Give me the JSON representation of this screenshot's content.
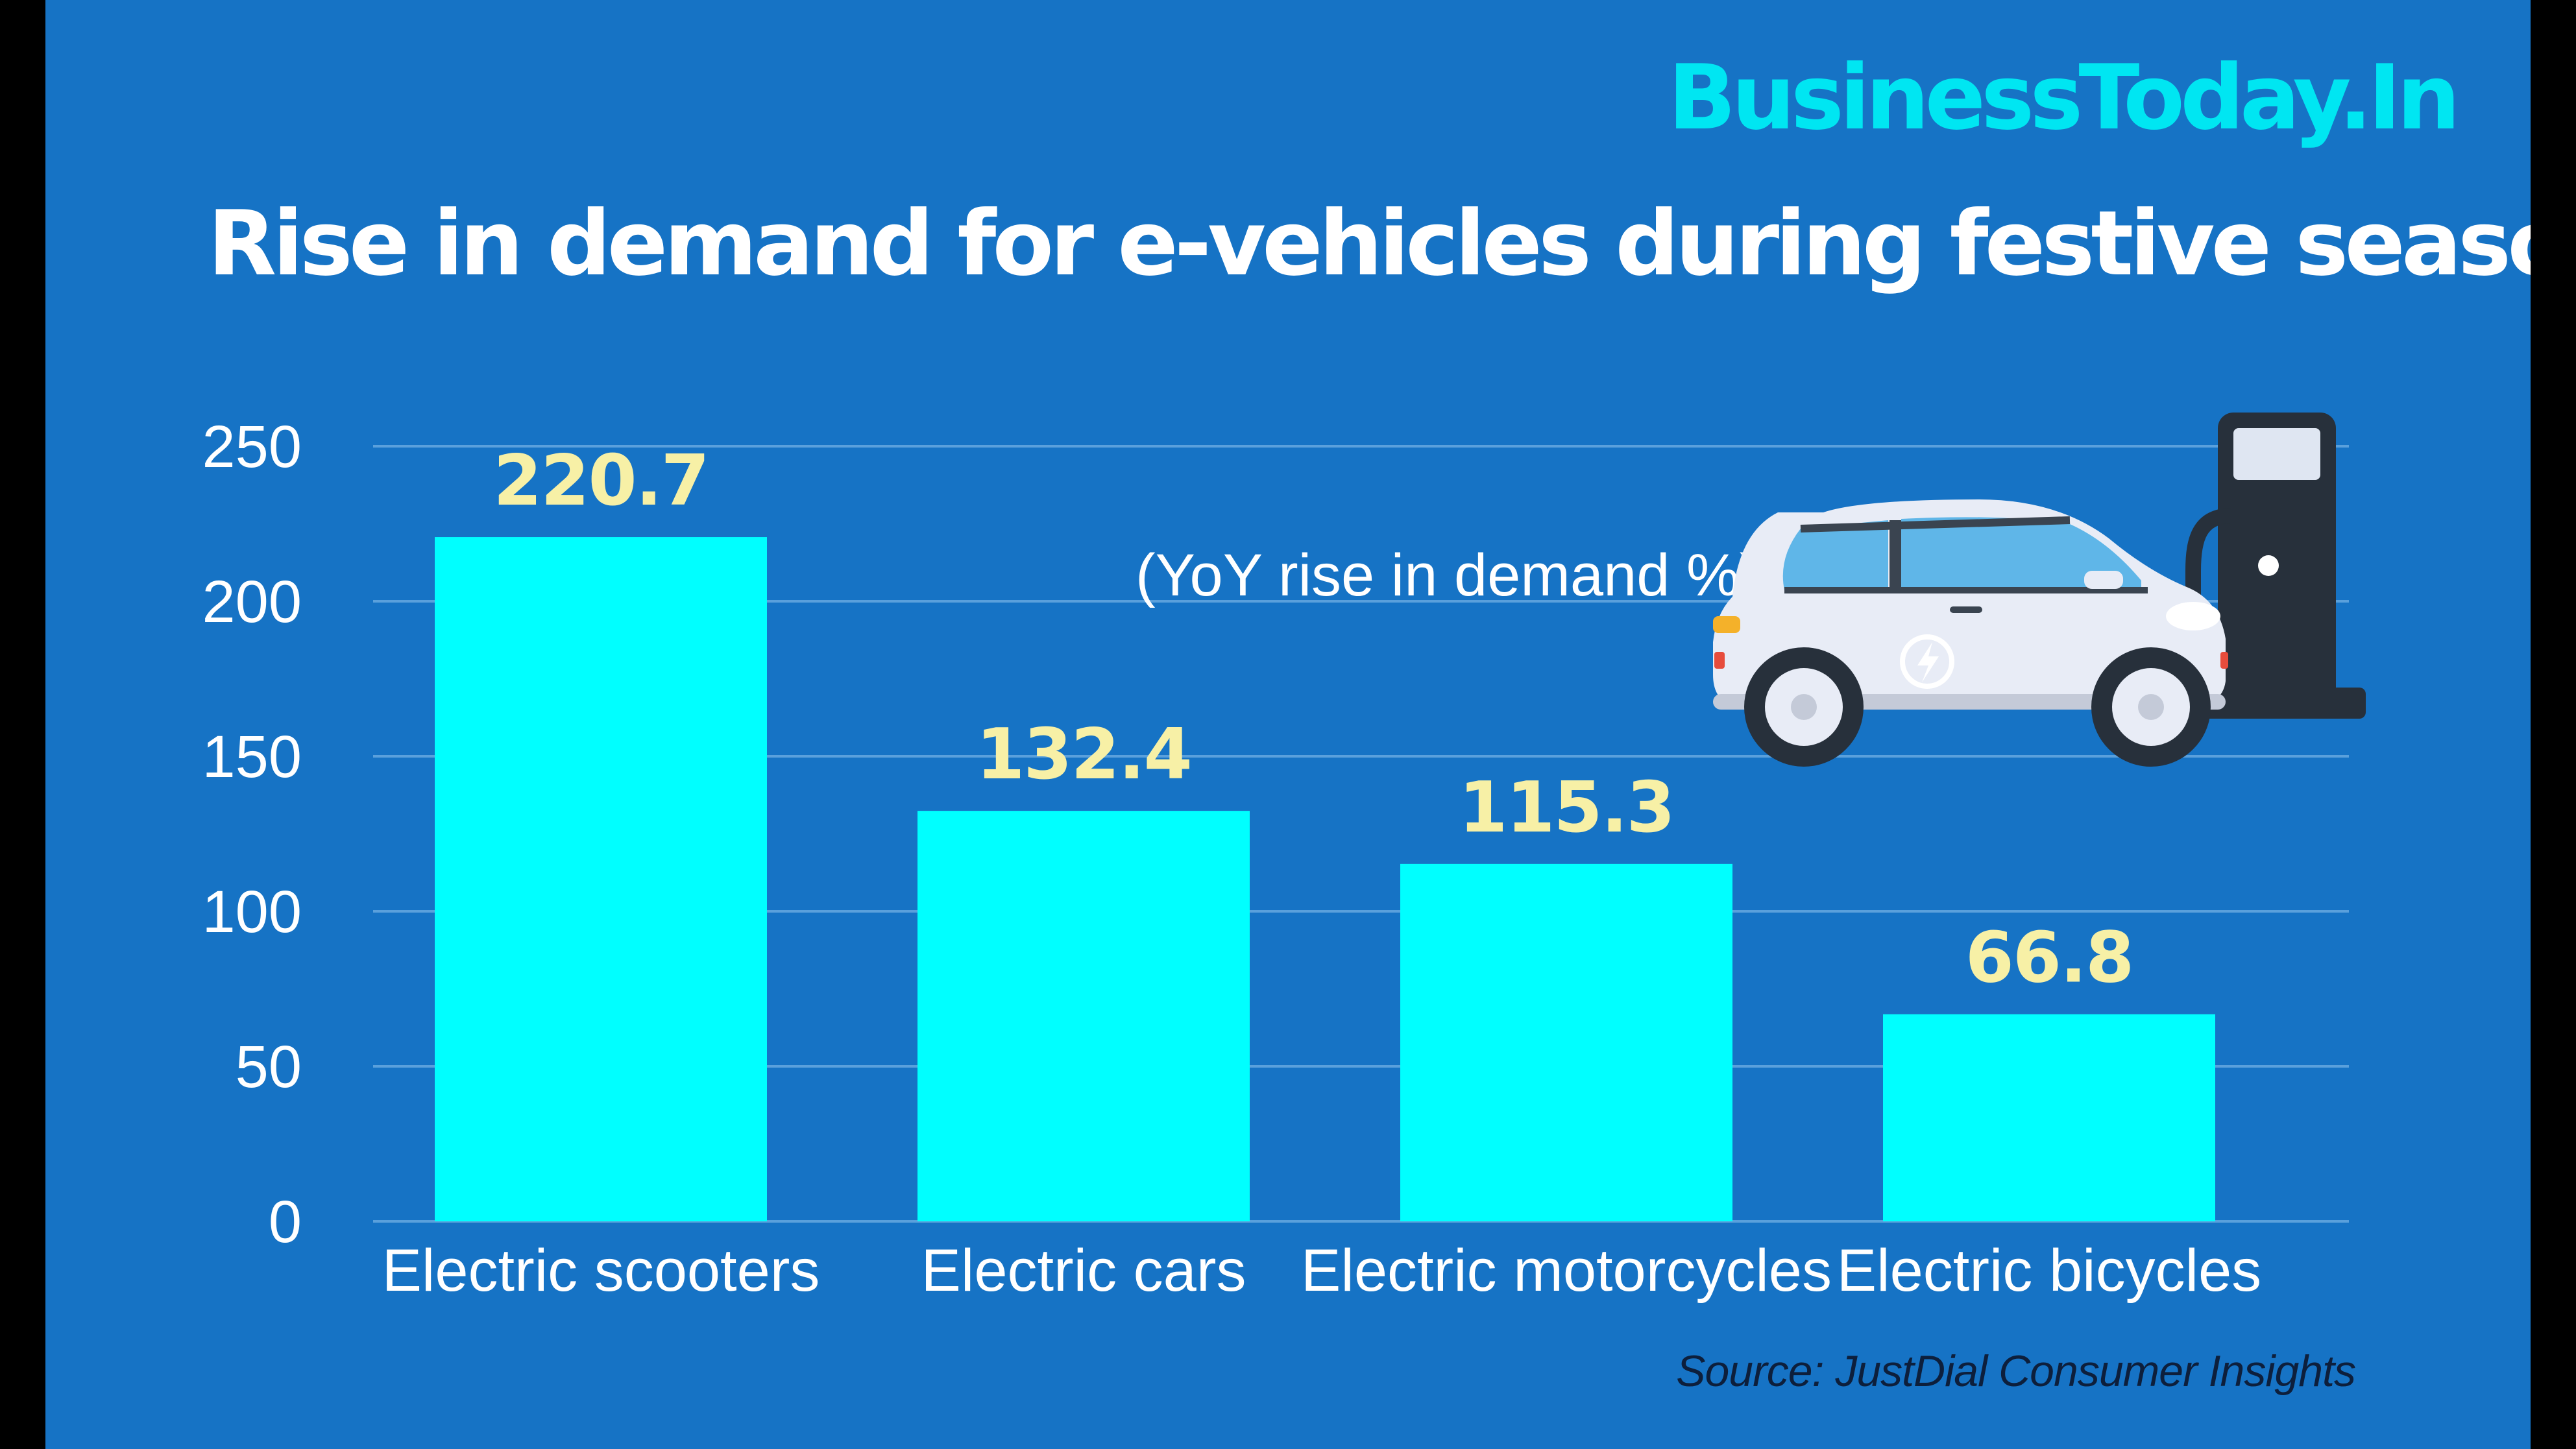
{
  "brand": "BusinessToday.In",
  "title": "Rise in demand for e-vehicles during festive season",
  "subtitle": "(YoY rise in demand %)",
  "source": "Source: JustDial Consumer Insights",
  "colors": {
    "background": "#1673c5",
    "bar": "#00ffff",
    "data_label": "#f7f0a6",
    "brand": "#00e6f2",
    "gridline": "#5aa0dc"
  },
  "chart_data": {
    "type": "bar",
    "categories": [
      "Electric scooters",
      "Electric cars",
      "Electric motorcycles",
      "Electric bicycles"
    ],
    "values": [
      220.7,
      132.4,
      115.3,
      66.8
    ],
    "data_labels": [
      "220.7",
      "132.4",
      "115.3",
      "66.8"
    ],
    "title": "Rise in demand for e-vehicles during festive season",
    "subtitle": "(YoY rise in demand %)",
    "xlabel": "",
    "ylabel": "",
    "ylim": [
      0,
      250
    ],
    "yticks": [
      0,
      50,
      100,
      150,
      200,
      250
    ],
    "grid": true,
    "legend": "none"
  }
}
